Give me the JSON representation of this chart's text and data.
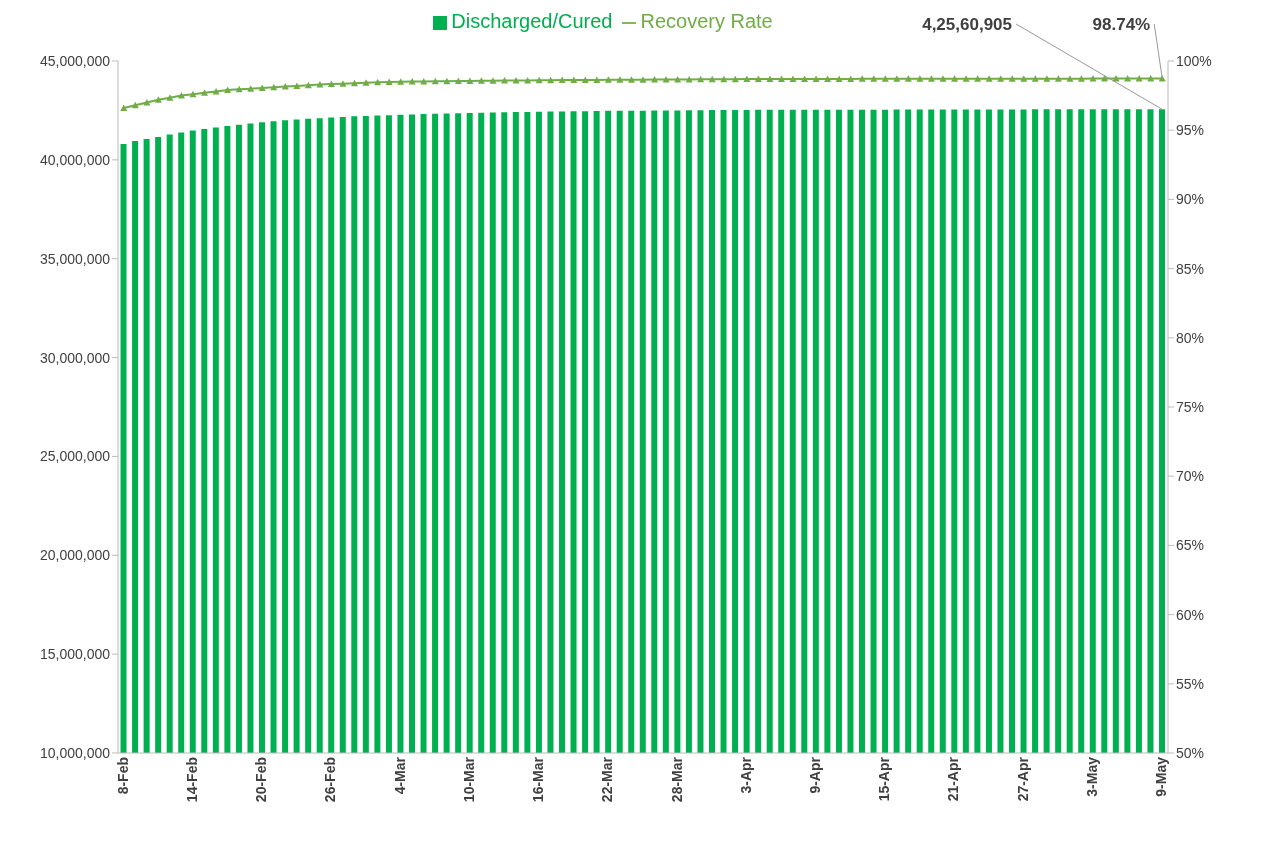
{
  "chart_data": {
    "type": "bar",
    "categories": [
      "8-Feb",
      null,
      null,
      null,
      null,
      null,
      "14-Feb",
      null,
      null,
      null,
      null,
      null,
      "20-Feb",
      null,
      null,
      null,
      null,
      null,
      "26-Feb",
      null,
      null,
      null,
      null,
      null,
      "4-Mar",
      null,
      null,
      null,
      null,
      null,
      "10-Mar",
      null,
      null,
      null,
      null,
      null,
      "16-Mar",
      null,
      null,
      null,
      null,
      null,
      "22-Mar",
      null,
      null,
      null,
      null,
      null,
      "28-Mar",
      null,
      null,
      null,
      null,
      null,
      "3-Apr",
      null,
      null,
      null,
      null,
      null,
      "9-Apr",
      null,
      null,
      null,
      null,
      null,
      "15-Apr",
      null,
      null,
      null,
      null,
      null,
      "21-Apr",
      null,
      null,
      null,
      null,
      null,
      "27-Apr",
      null,
      null,
      null,
      null,
      null,
      "3-May",
      null,
      null,
      null,
      null,
      null,
      "9-May"
    ],
    "series": [
      {
        "name": "Discharged/Cured",
        "color": "#00b050",
        "values": [
          40800000,
          40950000,
          41050000,
          41150000,
          41280000,
          41380000,
          41480000,
          41560000,
          41640000,
          41710000,
          41780000,
          41840000,
          41900000,
          41950000,
          42000000,
          42040000,
          42080000,
          42110000,
          42140000,
          42170000,
          42200000,
          42220000,
          42240000,
          42260000,
          42280000,
          42300000,
          42320000,
          42330000,
          42340000,
          42360000,
          42370000,
          42380000,
          42400000,
          42410000,
          42420000,
          42420000,
          42430000,
          42440000,
          42450000,
          42460000,
          42460000,
          42470000,
          42480000,
          42480000,
          42490000,
          42490000,
          42500000,
          42500000,
          42500000,
          42510000,
          42510000,
          42520000,
          42520000,
          42520000,
          42520000,
          42530000,
          42530000,
          42530000,
          42530000,
          42540000,
          42540000,
          42540000,
          42540000,
          42540000,
          42540000,
          42540000,
          42540000,
          42550000,
          42550000,
          42550000,
          42550000,
          42550000,
          42550000,
          42550000,
          42550000,
          42550000,
          42550000,
          42550000,
          42550000,
          42560000,
          42560000,
          42560000,
          42560000,
          42560000,
          42560000,
          42560000,
          42560000,
          42560000,
          42560000,
          42560000,
          42560905
        ],
        "value_labels": [
          null,
          null,
          null,
          null,
          null,
          null,
          null,
          null,
          null,
          null,
          null,
          null,
          null,
          null,
          null,
          null,
          null,
          null,
          null,
          null,
          null,
          null,
          null,
          null,
          null,
          null,
          null,
          null,
          null,
          null,
          null,
          null,
          null,
          null,
          null,
          null,
          null,
          null,
          null,
          null,
          null,
          null,
          null,
          null,
          null,
          null,
          null,
          null,
          null,
          null,
          null,
          null,
          null,
          null,
          null,
          null,
          null,
          null,
          null,
          null,
          null,
          null,
          null,
          null,
          null,
          null,
          null,
          null,
          null,
          null,
          null,
          null,
          null,
          null,
          null,
          null,
          null,
          null,
          null,
          null,
          null,
          null,
          null,
          null,
          null,
          null,
          null,
          null,
          null,
          null,
          "4,25,60,905"
        ]
      },
      {
        "name": "Recovery Rate",
        "type": "line",
        "axis": "y2",
        "color": "#70ad47",
        "marker": "triangle",
        "values": [
          96.6,
          96.8,
          97.0,
          97.2,
          97.35,
          97.5,
          97.6,
          97.7,
          97.8,
          97.9,
          97.95,
          98.0,
          98.05,
          98.1,
          98.15,
          98.2,
          98.25,
          98.3,
          98.33,
          98.36,
          98.4,
          98.43,
          98.46,
          98.48,
          98.5,
          98.51,
          98.52,
          98.53,
          98.54,
          98.55,
          98.56,
          98.57,
          98.58,
          98.59,
          98.6,
          98.6,
          98.61,
          98.61,
          98.62,
          98.62,
          98.63,
          98.63,
          98.64,
          98.64,
          98.65,
          98.65,
          98.66,
          98.66,
          98.67,
          98.67,
          98.68,
          98.68,
          98.69,
          98.69,
          98.7,
          98.7,
          98.7,
          98.7,
          98.7,
          98.7,
          98.7,
          98.7,
          98.7,
          98.7,
          98.71,
          98.71,
          98.71,
          98.71,
          98.71,
          98.71,
          98.71,
          98.71,
          98.71,
          98.71,
          98.72,
          98.72,
          98.72,
          98.72,
          98.72,
          98.72,
          98.72,
          98.72,
          98.72,
          98.72,
          98.73,
          98.73,
          98.73,
          98.73,
          98.73,
          98.73,
          98.74
        ],
        "value_labels": [
          null,
          null,
          null,
          null,
          null,
          null,
          null,
          null,
          null,
          null,
          null,
          null,
          null,
          null,
          null,
          null,
          null,
          null,
          null,
          null,
          null,
          null,
          null,
          null,
          null,
          null,
          null,
          null,
          null,
          null,
          null,
          null,
          null,
          null,
          null,
          null,
          null,
          null,
          null,
          null,
          null,
          null,
          null,
          null,
          null,
          null,
          null,
          null,
          null,
          null,
          null,
          null,
          null,
          null,
          null,
          null,
          null,
          null,
          null,
          null,
          null,
          null,
          null,
          null,
          null,
          null,
          null,
          null,
          null,
          null,
          null,
          null,
          null,
          null,
          null,
          null,
          null,
          null,
          null,
          null,
          null,
          null,
          null,
          null,
          null,
          null,
          null,
          null,
          null,
          null,
          "98.74%"
        ]
      }
    ],
    "ylim": [
      10000000,
      45000000
    ],
    "yticks": [
      {
        "value": 10000000,
        "label": "10,000,000"
      },
      {
        "value": 15000000,
        "label": "15,000,000"
      },
      {
        "value": 20000000,
        "label": "20,000,000"
      },
      {
        "value": 25000000,
        "label": "25,000,000"
      },
      {
        "value": 30000000,
        "label": "30,000,000"
      },
      {
        "value": 35000000,
        "label": "35,000,000"
      },
      {
        "value": 40000000,
        "label": "40,000,000"
      },
      {
        "value": 45000000,
        "label": "45,000,000"
      }
    ],
    "y2lim": [
      50,
      100
    ],
    "y2ticks": [
      {
        "value": 50,
        "label": "50%"
      },
      {
        "value": 55,
        "label": "55%"
      },
      {
        "value": 60,
        "label": "60%"
      },
      {
        "value": 65,
        "label": "65%"
      },
      {
        "value": 70,
        "label": "70%"
      },
      {
        "value": 75,
        "label": "75%"
      },
      {
        "value": 80,
        "label": "80%"
      },
      {
        "value": 85,
        "label": "85%"
      },
      {
        "value": 90,
        "label": "90%"
      },
      {
        "value": 95,
        "label": "95%"
      },
      {
        "value": 100,
        "label": "100%"
      }
    ],
    "legend": "top",
    "grid": false
  }
}
